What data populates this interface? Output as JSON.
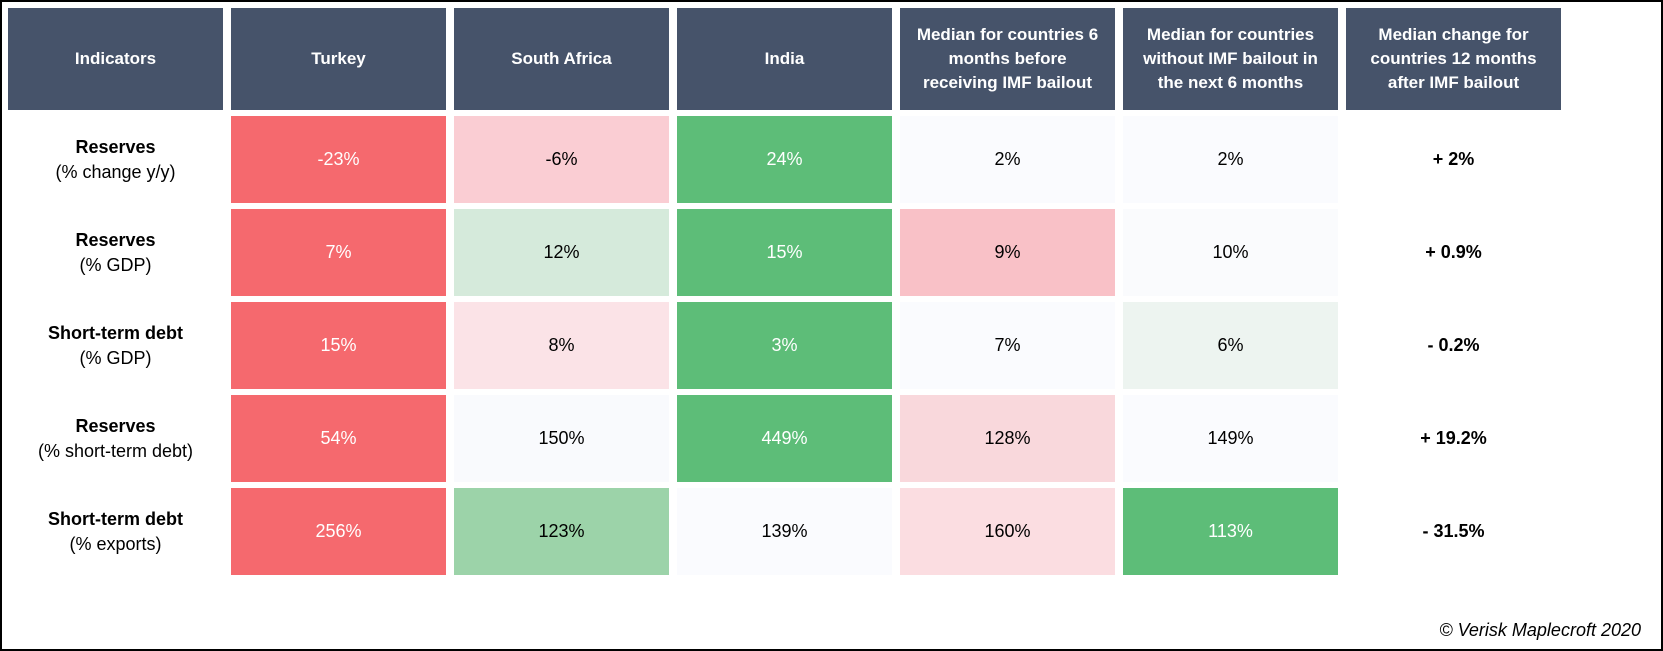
{
  "colors": {
    "header_bg": "#46536A",
    "header_fg": "#FFFFFF",
    "strong_red": "#F5696E",
    "strong_green": "#5DBD78",
    "frame_border": "#000000",
    "background": "#FFFFFF"
  },
  "table": {
    "columns": [
      {
        "label": "Indicators"
      },
      {
        "label": "Turkey"
      },
      {
        "label": "South Africa"
      },
      {
        "label": "India"
      },
      {
        "label": "Median for countries 6 months before receiving IMF bailout"
      },
      {
        "label": "Median for countries without IMF bailout in the next 6 months"
      },
      {
        "label": "Median change for countries 12 months after IMF bailout"
      }
    ],
    "rows": [
      {
        "indicator": "Reserves",
        "indicator_sub": "(% change y/y)",
        "cells": [
          {
            "value": "-23%",
            "bg": "#F5696E",
            "fg": "#FFFFFF"
          },
          {
            "value": "-6%",
            "bg": "#FACDD3",
            "fg": "#000000"
          },
          {
            "value": "24%",
            "bg": "#5DBD78",
            "fg": "#FFFFFF"
          },
          {
            "value": "2%",
            "bg": "#FAFBFE",
            "fg": "#000000"
          },
          {
            "value": "2%",
            "bg": "#FAFBFE",
            "fg": "#000000"
          }
        ],
        "change": "+ 2%"
      },
      {
        "indicator": "Reserves",
        "indicator_sub": "(% GDP)",
        "cells": [
          {
            "value": "7%",
            "bg": "#F5696E",
            "fg": "#FFFFFF"
          },
          {
            "value": "12%",
            "bg": "#D5EADB",
            "fg": "#000000"
          },
          {
            "value": "15%",
            "bg": "#5DBD78",
            "fg": "#FFFFFF"
          },
          {
            "value": "9%",
            "bg": "#F9C1C7",
            "fg": "#000000"
          },
          {
            "value": "10%",
            "bg": "#FAFBFD",
            "fg": "#000000"
          }
        ],
        "change": "+ 0.9%"
      },
      {
        "indicator": "Short-term debt",
        "indicator_sub": "(% GDP)",
        "cells": [
          {
            "value": "15%",
            "bg": "#F5696E",
            "fg": "#FFFFFF"
          },
          {
            "value": "8%",
            "bg": "#FBE3E7",
            "fg": "#000000"
          },
          {
            "value": "3%",
            "bg": "#5DBD78",
            "fg": "#FFFFFF"
          },
          {
            "value": "7%",
            "bg": "#FAFBFE",
            "fg": "#000000"
          },
          {
            "value": "6%",
            "bg": "#EDF4F0",
            "fg": "#000000"
          }
        ],
        "change": "- 0.2%"
      },
      {
        "indicator": "Reserves",
        "indicator_sub": "(% short-term debt)",
        "cells": [
          {
            "value": "54%",
            "bg": "#F5696E",
            "fg": "#FFFFFF"
          },
          {
            "value": "150%",
            "bg": "#F9FAFD",
            "fg": "#000000"
          },
          {
            "value": "449%",
            "bg": "#5DBD78",
            "fg": "#FFFFFF"
          },
          {
            "value": "128%",
            "bg": "#F9D8DC",
            "fg": "#000000"
          },
          {
            "value": "149%",
            "bg": "#FAFBFE",
            "fg": "#000000"
          }
        ],
        "change": "+ 19.2%"
      },
      {
        "indicator": "Short-term debt",
        "indicator_sub": "(% exports)",
        "cells": [
          {
            "value": "256%",
            "bg": "#F5696E",
            "fg": "#FFFFFF"
          },
          {
            "value": "123%",
            "bg": "#9CD3A9",
            "fg": "#000000"
          },
          {
            "value": "139%",
            "bg": "#FAFBFE",
            "fg": "#000000"
          },
          {
            "value": "160%",
            "bg": "#FBDDE1",
            "fg": "#000000"
          },
          {
            "value": "113%",
            "bg": "#5DBD78",
            "fg": "#FFFFFF"
          }
        ],
        "change": "- 31.5%"
      }
    ]
  },
  "footer": {
    "copyright": "© Verisk Maplecroft 2020"
  },
  "chart_data": {
    "type": "heatmap",
    "title": "",
    "columns": [
      "Indicators",
      "Turkey",
      "South Africa",
      "India",
      "Median for countries 6 months before receiving IMF bailout",
      "Median for countries without IMF bailout in the next 6 months",
      "Median change for countries 12 months after IMF bailout"
    ],
    "row_labels": [
      "Reserves (% change y/y)",
      "Reserves (% GDP)",
      "Short-term debt (% GDP)",
      "Reserves (% short-term debt)",
      "Short-term debt (% exports)"
    ],
    "values_percent": [
      [
        -23,
        -6,
        24,
        2,
        2,
        2
      ],
      [
        7,
        12,
        15,
        9,
        10,
        0.9
      ],
      [
        15,
        8,
        3,
        7,
        6,
        -0.2
      ],
      [
        54,
        150,
        449,
        128,
        149,
        19.2
      ],
      [
        256,
        123,
        139,
        160,
        113,
        -31.5
      ]
    ],
    "color_scale": "red = risk / worse than median, green = better than median",
    "annotations": [
      "© Verisk Maplecroft 2020"
    ]
  }
}
